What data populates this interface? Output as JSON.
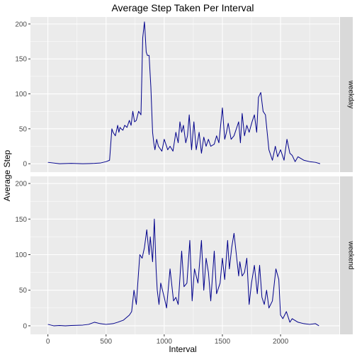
{
  "chart_data": {
    "type": "line",
    "title": "Average Step Taken Per Interval",
    "xlabel": "Interval",
    "ylabel": "Average Step",
    "xlim": [
      -150,
      2505
    ],
    "ylim": [
      -12,
      210
    ],
    "x_ticks": [
      0,
      500,
      1000,
      1500,
      2000
    ],
    "x_tick_labels": [
      "0",
      "500",
      "1000",
      "1500",
      "2000"
    ],
    "y_ticks": [
      0,
      50,
      100,
      150,
      200
    ],
    "y_tick_labels": [
      "0",
      "50",
      "100",
      "150",
      "200"
    ],
    "grid": true,
    "line_color": "#00008B",
    "panel_background": "#EBEBEB",
    "strip_background": "#D9D9D9",
    "facets": [
      {
        "label": "weekday",
        "series": [
          {
            "x": [
              0,
              100,
              200,
              300,
              400,
              450,
              500,
              530,
              550,
              560,
              580,
              600,
              610,
              620,
              630,
              645,
              660,
              680,
              700,
              715,
              730,
              745,
              760,
              780,
              800,
              815,
              830,
              835,
              845,
              855,
              870,
              885,
              900,
              910,
              920,
              935,
              950,
              980,
              1000,
              1030,
              1050,
              1075,
              1100,
              1120,
              1135,
              1150,
              1165,
              1185,
              1200,
              1215,
              1235,
              1255,
              1275,
              1300,
              1320,
              1340,
              1360,
              1380,
              1400,
              1430,
              1450,
              1470,
              1500,
              1520,
              1535,
              1550,
              1575,
              1600,
              1620,
              1640,
              1655,
              1670,
              1690,
              1710,
              1730,
              1755,
              1775,
              1795,
              1810,
              1830,
              1850,
              1870,
              1900,
              1930,
              1955,
              1975,
              2000,
              2030,
              2055,
              2080,
              2100,
              2125,
              2150,
              2200,
              2250,
              2300,
              2340
            ],
            "y": [
              2,
              0,
              0.5,
              0,
              0.5,
              1,
              3,
              5,
              50,
              45,
              40,
              55,
              45,
              52,
              50,
              48,
              55,
              52,
              62,
              55,
              75,
              60,
              62,
              75,
              70,
              180,
              203,
              190,
              160,
              155,
              155,
              110,
              45,
              30,
              20,
              35,
              25,
              18,
              35,
              20,
              25,
              18,
              45,
              30,
              60,
              45,
              55,
              30,
              40,
              70,
              20,
              60,
              20,
              45,
              15,
              38,
              25,
              35,
              25,
              28,
              40,
              30,
              80,
              35,
              45,
              58,
              35,
              40,
              50,
              60,
              30,
              72,
              40,
              55,
              45,
              60,
              70,
              45,
              95,
              102,
              75,
              70,
              20,
              5,
              25,
              10,
              20,
              5,
              35,
              15,
              12,
              3,
              10,
              5,
              3,
              2,
              0
            ]
          }
        ]
      },
      {
        "label": "weekend",
        "series": [
          {
            "x": [
              0,
              50,
              100,
              150,
              200,
              300,
              350,
              400,
              450,
              500,
              560,
              600,
              650,
              700,
              720,
              740,
              760,
              790,
              810,
              830,
              850,
              870,
              880,
              900,
              915,
              930,
              940,
              955,
              970,
              1000,
              1020,
              1050,
              1080,
              1100,
              1120,
              1150,
              1170,
              1195,
              1220,
              1240,
              1260,
              1290,
              1320,
              1340,
              1360,
              1380,
              1400,
              1430,
              1450,
              1480,
              1500,
              1520,
              1545,
              1560,
              1580,
              1600,
              1620,
              1640,
              1650,
              1670,
              1690,
              1710,
              1730,
              1750,
              1775,
              1800,
              1820,
              1840,
              1860,
              1880,
              1900,
              1930,
              1960,
              1985,
              2000,
              2020,
              2050,
              2080,
              2100,
              2150,
              2200,
              2250,
              2300,
              2330
            ],
            "y": [
              2,
              0,
              0.5,
              0,
              0.5,
              1,
              2,
              5,
              3,
              2,
              3,
              5,
              8,
              15,
              20,
              50,
              30,
              100,
              95,
              110,
              135,
              100,
              125,
              90,
              150,
              80,
              50,
              30,
              60,
              40,
              25,
              80,
              35,
              40,
              30,
              105,
              55,
              60,
              120,
              35,
              80,
              60,
              120,
              50,
              95,
              75,
              35,
              105,
              45,
              60,
              95,
              65,
              120,
              80,
              110,
              130,
              100,
              70,
              90,
              70,
              75,
              95,
              30,
              60,
              85,
              45,
              85,
              40,
              30,
              50,
              25,
              35,
              80,
              65,
              15,
              10,
              20,
              5,
              10,
              5,
              3,
              2,
              3,
              0
            ]
          }
        ]
      }
    ]
  }
}
